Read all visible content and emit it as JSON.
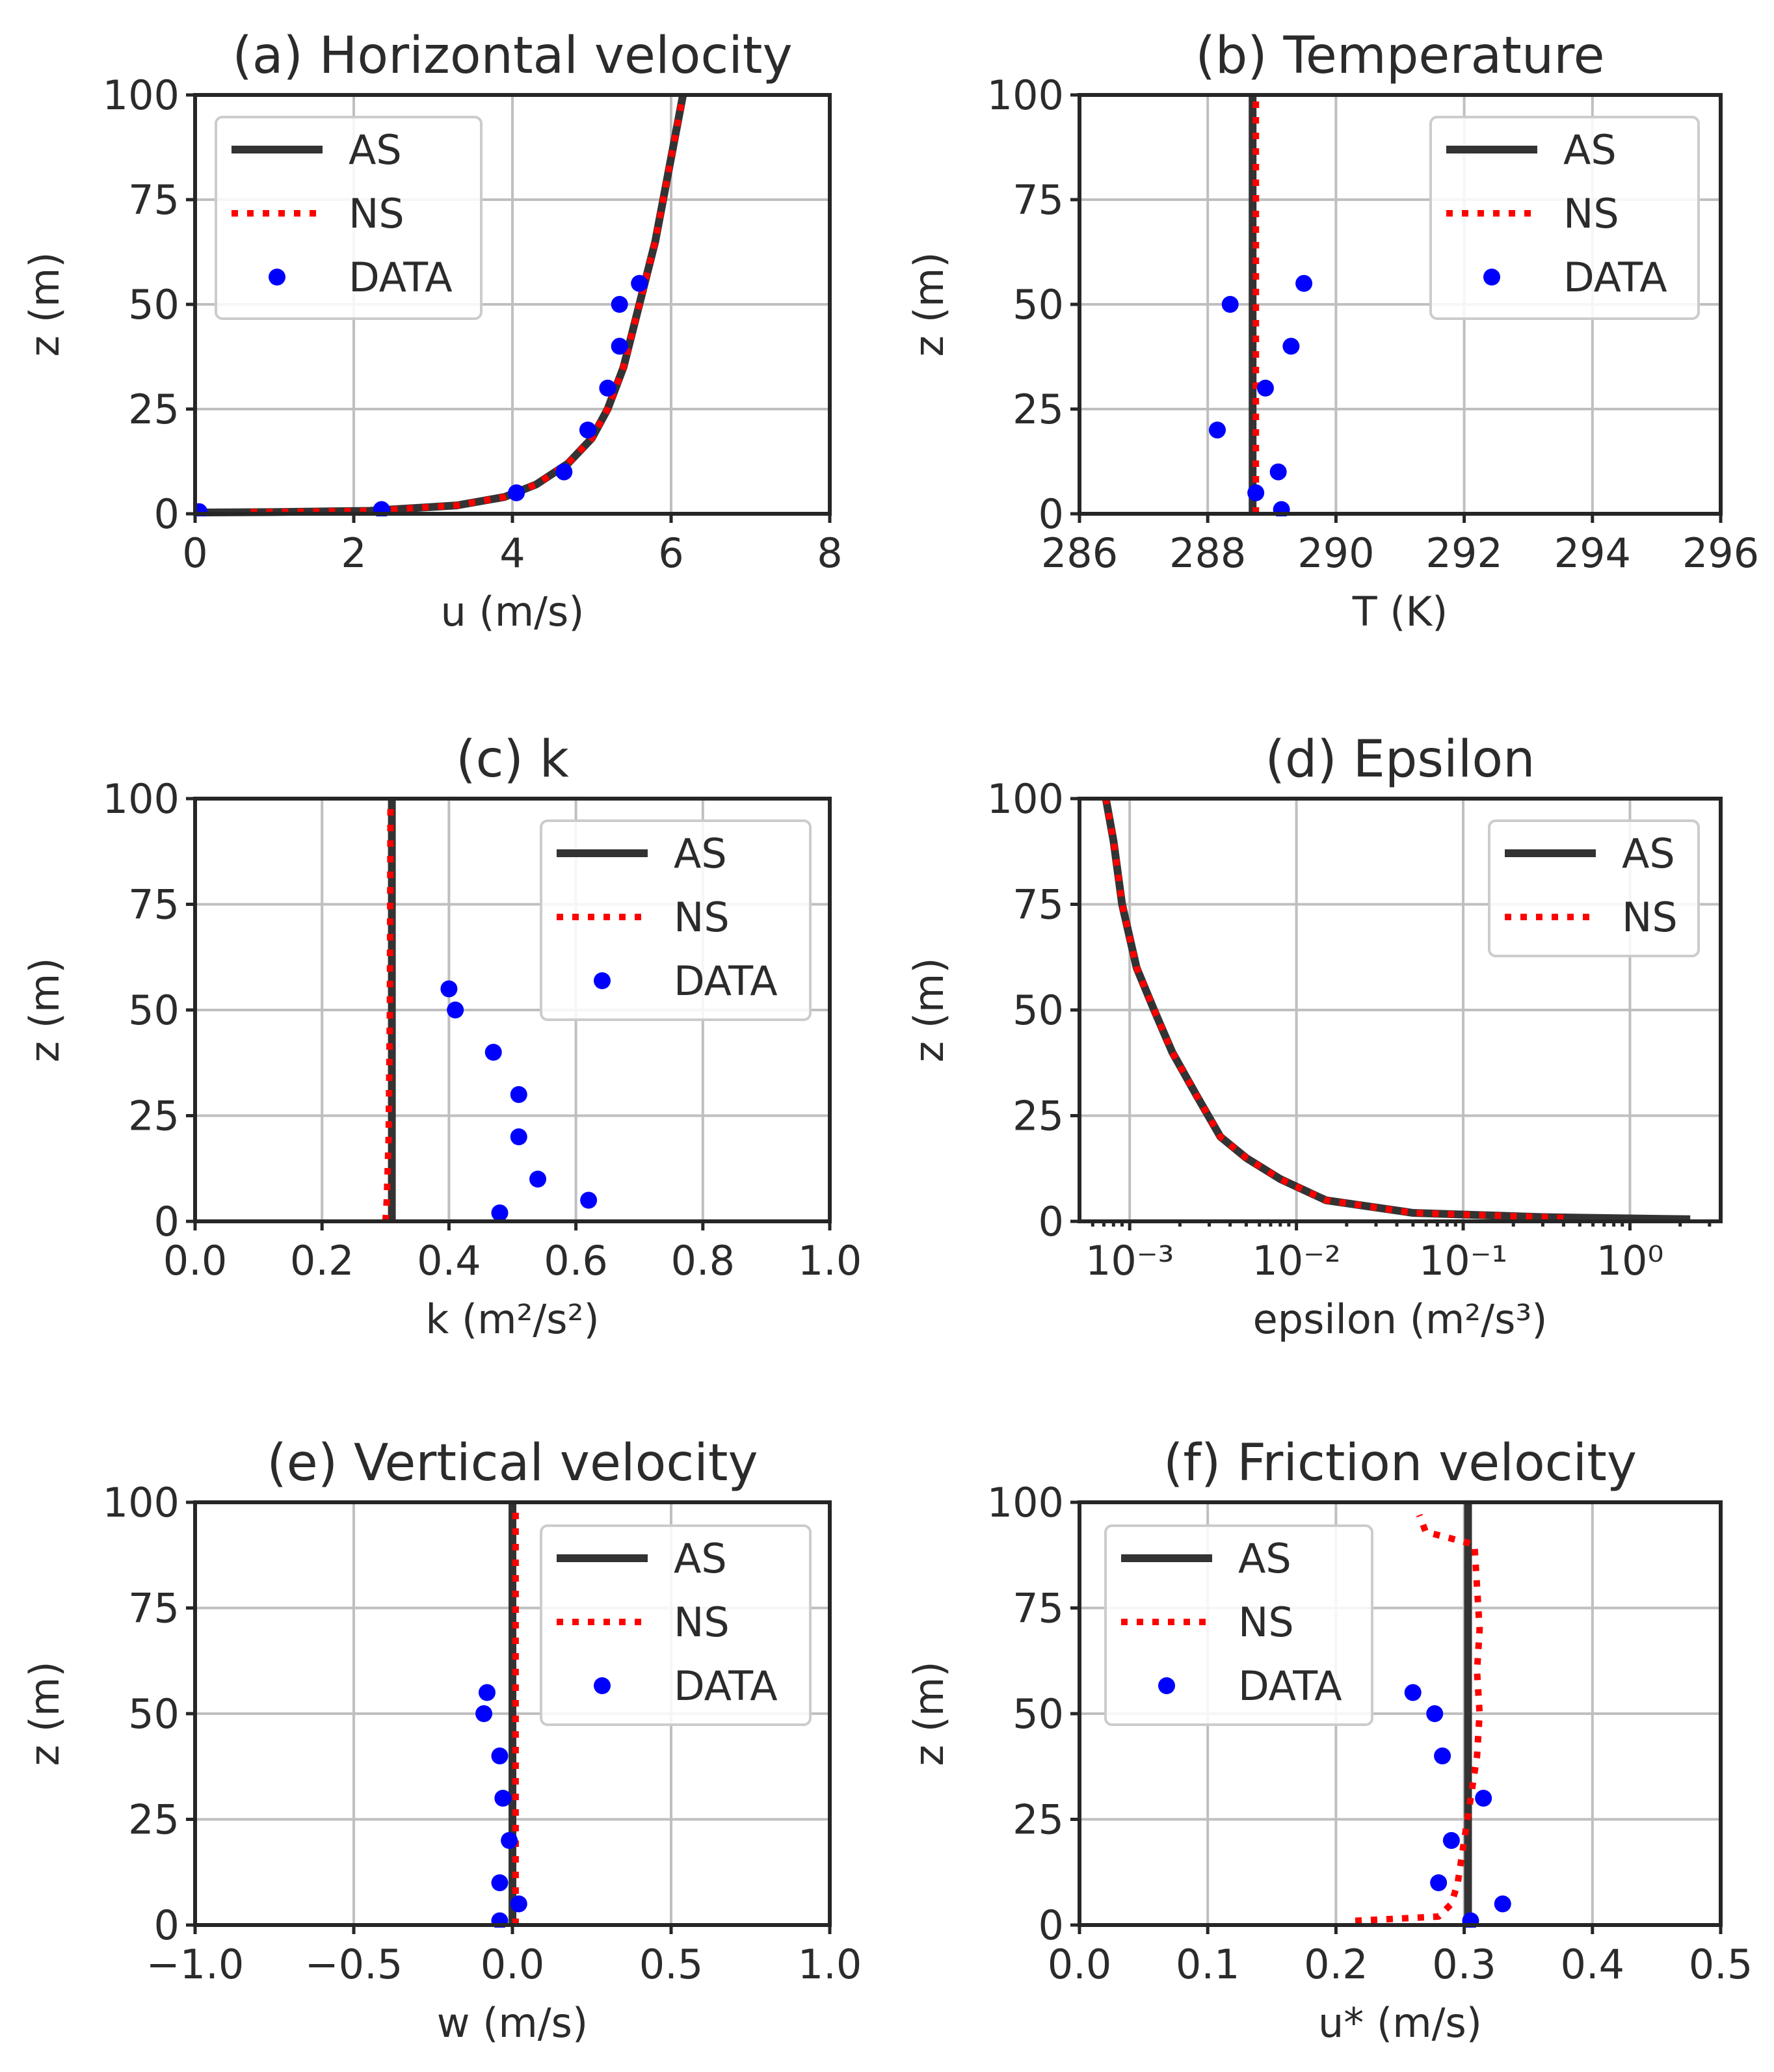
{
  "colors": {
    "as": "#333333",
    "ns": "#ff0000",
    "data": "#0000ff"
  },
  "chart_data": [
    {
      "id": "a",
      "type": "line",
      "title": "(a) Horizontal velocity",
      "xlabel": "u (m/s)",
      "ylabel": "z (m)",
      "xscale": "linear",
      "xlim": [
        0,
        8
      ],
      "ylim": [
        0,
        100
      ],
      "xticks": [
        0,
        2,
        4,
        6,
        8
      ],
      "xticklabels": [
        "0",
        "2",
        "4",
        "6",
        "8"
      ],
      "yticks": [
        0,
        25,
        50,
        75,
        100
      ],
      "yticklabels": [
        "0",
        "25",
        "50",
        "75",
        "100"
      ],
      "grid": true,
      "legend_position": "top-left",
      "legend": [
        "AS",
        "NS",
        "DATA"
      ],
      "series": [
        {
          "name": "AS",
          "style": "solid",
          "x": [
            0,
            1.0,
            2.2,
            3.3,
            3.9,
            4.3,
            4.7,
            5.0,
            5.2,
            5.4,
            5.6,
            5.8,
            6.0,
            6.15
          ],
          "z": [
            0.3,
            0.4,
            0.7,
            2,
            4,
            7,
            12,
            18,
            25,
            35,
            50,
            65,
            85,
            100
          ]
        },
        {
          "name": "NS",
          "style": "dotted",
          "x": [
            0.7,
            1.0,
            2.2,
            3.3,
            3.9,
            4.3,
            4.7,
            5.0,
            5.2,
            5.4,
            5.6,
            5.8,
            6.0,
            6.15
          ],
          "z": [
            0.4,
            0.4,
            0.7,
            2,
            4,
            7,
            12,
            18,
            25,
            35,
            50,
            65,
            85,
            100
          ]
        },
        {
          "name": "DATA",
          "style": "markers",
          "x": [
            0.05,
            2.35,
            4.05,
            4.65,
            4.95,
            5.2,
            5.35,
            5.35,
            5.6
          ],
          "z": [
            0.5,
            1,
            5,
            10,
            20,
            30,
            40,
            50,
            55
          ]
        }
      ]
    },
    {
      "id": "b",
      "type": "line",
      "title": "(b) Temperature",
      "xlabel": "T (K)",
      "ylabel": "z (m)",
      "xscale": "linear",
      "xlim": [
        286,
        296
      ],
      "ylim": [
        0,
        100
      ],
      "xticks": [
        286,
        288,
        290,
        292,
        294,
        296
      ],
      "xticklabels": [
        "286",
        "288",
        "290",
        "292",
        "294",
        "296"
      ],
      "yticks": [
        0,
        25,
        50,
        75,
        100
      ],
      "yticklabels": [
        "0",
        "25",
        "50",
        "75",
        "100"
      ],
      "grid": true,
      "legend_position": "top-right",
      "legend": [
        "AS",
        "NS",
        "DATA"
      ],
      "series": [
        {
          "name": "AS",
          "style": "solid",
          "x": [
            288.7,
            288.7
          ],
          "z": [
            0,
            100
          ]
        },
        {
          "name": "NS",
          "style": "dotted",
          "x": [
            288.75,
            288.75
          ],
          "z": [
            0,
            100
          ]
        },
        {
          "name": "DATA",
          "style": "markers",
          "x": [
            289.15,
            288.75,
            289.1,
            288.15,
            288.9,
            289.3,
            288.35,
            289.5
          ],
          "z": [
            1,
            5,
            10,
            20,
            30,
            40,
            50,
            55
          ]
        }
      ]
    },
    {
      "id": "c",
      "type": "line",
      "title": "(c) k",
      "xlabel": "k (m²/s²)",
      "ylabel": "z (m)",
      "xscale": "linear",
      "xlim": [
        0,
        1
      ],
      "ylim": [
        0,
        100
      ],
      "xticks": [
        0,
        0.2,
        0.4,
        0.6,
        0.8,
        1.0
      ],
      "xticklabels": [
        "0.0",
        "0.2",
        "0.4",
        "0.6",
        "0.8",
        "1.0"
      ],
      "yticks": [
        0,
        25,
        50,
        75,
        100
      ],
      "yticklabels": [
        "0",
        "25",
        "50",
        "75",
        "100"
      ],
      "grid": true,
      "legend_position": "top-right",
      "legend": [
        "AS",
        "NS",
        "DATA"
      ],
      "series": [
        {
          "name": "AS",
          "style": "solid",
          "x": [
            0.31,
            0.31
          ],
          "z": [
            0,
            100
          ]
        },
        {
          "name": "NS",
          "style": "dotted",
          "x": [
            0.3,
            0.302,
            0.305,
            0.307,
            0.308
          ],
          "z": [
            0,
            5,
            20,
            50,
            100
          ]
        },
        {
          "name": "DATA",
          "style": "markers",
          "x": [
            0.48,
            0.62,
            0.54,
            0.51,
            0.51,
            0.47,
            0.41,
            0.4
          ],
          "z": [
            2,
            5,
            10,
            20,
            30,
            40,
            50,
            55
          ]
        }
      ]
    },
    {
      "id": "d",
      "type": "line",
      "title": "(d) Epsilon",
      "xlabel": "epsilon (m²/s³)",
      "ylabel": "z (m)",
      "xscale": "log",
      "xlim": [
        0.0005,
        3.5
      ],
      "ylim": [
        0,
        100
      ],
      "xticks": [
        0.001,
        0.01,
        0.1,
        1
      ],
      "xticklabels": [
        "10⁻³",
        "10⁻²",
        "10⁻¹",
        "10⁰"
      ],
      "yticks": [
        0,
        25,
        50,
        75,
        100
      ],
      "yticklabels": [
        "0",
        "25",
        "50",
        "75",
        "100"
      ],
      "grid": true,
      "legend_position": "top-right",
      "legend": [
        "AS",
        "NS"
      ],
      "series": [
        {
          "name": "AS",
          "style": "solid",
          "x": [
            2.3,
            0.3,
            0.05,
            0.015,
            0.008,
            0.005,
            0.0035,
            0.0025,
            0.0018,
            0.0014,
            0.0011,
            0.0009,
            0.0008,
            0.00072
          ],
          "z": [
            0.5,
            1,
            2,
            5,
            10,
            15,
            20,
            30,
            40,
            50,
            60,
            75,
            90,
            100
          ]
        },
        {
          "name": "NS",
          "style": "dotted",
          "x": [
            0.4,
            0.3,
            0.05,
            0.015,
            0.008,
            0.005,
            0.0035,
            0.0025,
            0.0018,
            0.0014,
            0.0011,
            0.0009,
            0.0008,
            0.00072
          ],
          "z": [
            0.8,
            1,
            2,
            5,
            10,
            15,
            20,
            30,
            40,
            50,
            60,
            75,
            90,
            100
          ]
        }
      ]
    },
    {
      "id": "e",
      "type": "line",
      "title": "(e) Vertical velocity",
      "xlabel": "w (m/s)",
      "ylabel": "z (m)",
      "xscale": "linear",
      "xlim": [
        -1,
        1
      ],
      "ylim": [
        0,
        100
      ],
      "xticks": [
        -1,
        -0.5,
        0,
        0.5,
        1
      ],
      "xticklabels": [
        "−1.0",
        "−0.5",
        "0.0",
        "0.5",
        "1.0"
      ],
      "yticks": [
        0,
        25,
        50,
        75,
        100
      ],
      "yticklabels": [
        "0",
        "25",
        "50",
        "75",
        "100"
      ],
      "grid": true,
      "legend_position": "top-right",
      "legend": [
        "AS",
        "NS",
        "DATA"
      ],
      "series": [
        {
          "name": "AS",
          "style": "solid",
          "x": [
            0,
            0
          ],
          "z": [
            0,
            100
          ]
        },
        {
          "name": "NS",
          "style": "dotted",
          "x": [
            0.01,
            0.01
          ],
          "z": [
            0,
            100
          ]
        },
        {
          "name": "DATA",
          "style": "markers",
          "x": [
            -0.04,
            0.02,
            -0.04,
            -0.01,
            -0.03,
            -0.04,
            -0.09,
            -0.08
          ],
          "z": [
            1,
            5,
            10,
            20,
            30,
            40,
            50,
            55
          ]
        }
      ]
    },
    {
      "id": "f",
      "type": "line",
      "title": "(f) Friction velocity",
      "xlabel": "u* (m/s)",
      "ylabel": "z (m)",
      "xscale": "linear",
      "xlim": [
        0,
        0.5
      ],
      "ylim": [
        0,
        100
      ],
      "xticks": [
        0,
        0.1,
        0.2,
        0.3,
        0.4,
        0.5
      ],
      "xticklabels": [
        "0.0",
        "0.1",
        "0.2",
        "0.3",
        "0.4",
        "0.5"
      ],
      "yticks": [
        0,
        25,
        50,
        75,
        100
      ],
      "yticklabels": [
        "0",
        "25",
        "50",
        "75",
        "100"
      ],
      "grid": true,
      "legend_position": "top-left",
      "legend": [
        "AS",
        "NS",
        "DATA"
      ],
      "series": [
        {
          "name": "AS",
          "style": "solid",
          "x": [
            0.303,
            0.303
          ],
          "z": [
            0,
            100
          ]
        },
        {
          "name": "NS",
          "style": "dotted",
          "x": [
            0.215,
            0.28,
            0.29,
            0.295,
            0.3,
            0.305,
            0.31,
            0.312,
            0.31,
            0.312,
            0.31,
            0.308,
            0.27,
            0.265
          ],
          "z": [
            1,
            2,
            5,
            10,
            20,
            30,
            40,
            50,
            60,
            70,
            80,
            90,
            93,
            97
          ]
        },
        {
          "name": "DATA",
          "style": "markers",
          "x": [
            0.305,
            0.33,
            0.28,
            0.29,
            0.315,
            0.283,
            0.277,
            0.26
          ],
          "z": [
            1,
            5,
            10,
            20,
            30,
            40,
            50,
            55
          ]
        }
      ]
    }
  ]
}
